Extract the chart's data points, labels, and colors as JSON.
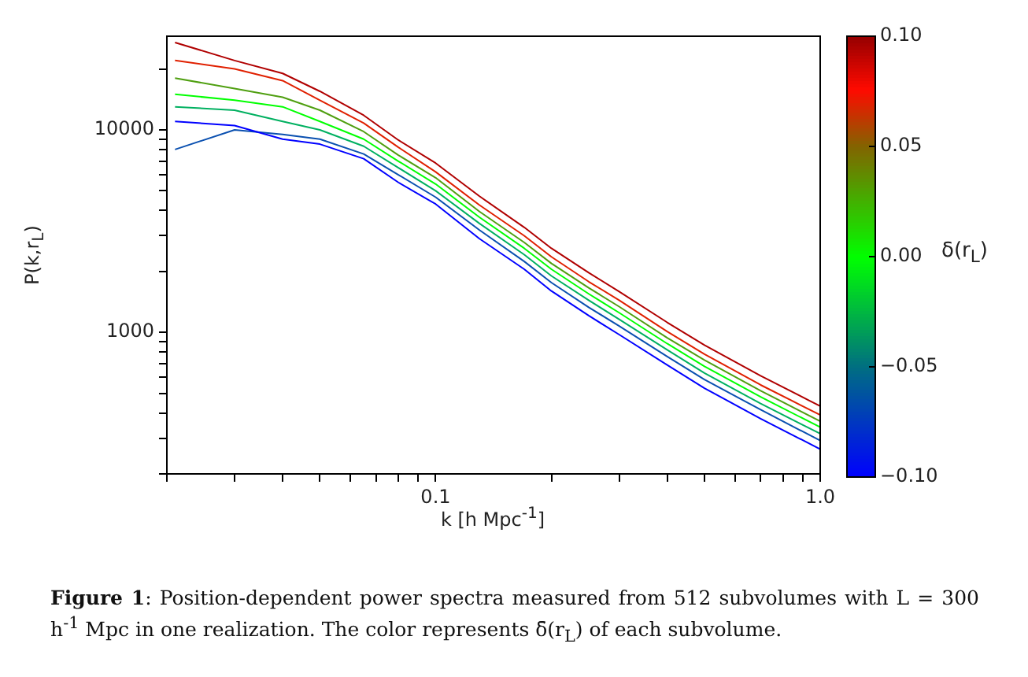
{
  "chart_data": {
    "type": "line",
    "xlabel": "k [h Mpc$^{-1}$]",
    "ylabel": "P(k,r$_{L}$)",
    "clabel": "δ(r$_{L}$)",
    "log": "xy",
    "grid": false,
    "legend": false,
    "marker": "none",
    "line_style": "solid",
    "xlim": [
      0.02,
      1.0
    ],
    "ylim": [
      200,
      29000
    ],
    "xticks": [
      {
        "value": 0.02,
        "label": null
      },
      {
        "value": 0.03,
        "label": null
      },
      {
        "value": 0.04,
        "label": null
      },
      {
        "value": 0.05,
        "label": null
      },
      {
        "value": 0.06,
        "label": null
      },
      {
        "value": 0.07,
        "label": null
      },
      {
        "value": 0.08,
        "label": null
      },
      {
        "value": 0.09,
        "label": null
      },
      0.1,
      {
        "value": 0.2,
        "label": null
      },
      {
        "value": 0.3,
        "label": null
      },
      {
        "value": 0.4,
        "label": null
      },
      {
        "value": 0.5,
        "label": null
      },
      {
        "value": 0.6,
        "label": null
      },
      {
        "value": 0.7,
        "label": null
      },
      {
        "value": 0.8,
        "label": null
      },
      {
        "value": 0.9,
        "label": null
      },
      {
        "value": 1.0,
        "label": "1.0"
      }
    ],
    "yticks": [
      {
        "value": 200,
        "label": null
      },
      {
        "value": 300,
        "label": null
      },
      {
        "value": 400,
        "label": null
      },
      {
        "value": 500,
        "label": null
      },
      {
        "value": 600,
        "label": null
      },
      {
        "value": 700,
        "label": null
      },
      {
        "value": 800,
        "label": null
      },
      {
        "value": 900,
        "label": null
      },
      1000,
      {
        "value": 2000,
        "label": null
      },
      {
        "value": 3000,
        "label": null
      },
      {
        "value": 4000,
        "label": null
      },
      {
        "value": 5000,
        "label": null
      },
      {
        "value": 6000,
        "label": null
      },
      {
        "value": 7000,
        "label": null
      },
      {
        "value": 8000,
        "label": null
      },
      {
        "value": 9000,
        "label": null
      },
      10000,
      {
        "value": 20000,
        "label": null
      }
    ],
    "clim": [
      -0.1,
      0.1
    ],
    "cticks": [
      {
        "value": -0.1,
        "label": "−0.10"
      },
      {
        "value": -0.05,
        "label": "−0.05"
      },
      {
        "value": 0,
        "label": "0.00"
      },
      {
        "value": 0.05,
        "label": "0.05"
      },
      {
        "value": 0.1,
        "label": "0.10"
      }
    ],
    "x": [
      0.021,
      0.03,
      0.04,
      0.05,
      0.065,
      0.08,
      0.1,
      0.13,
      0.17,
      0.2,
      0.25,
      0.3,
      0.4,
      0.5,
      0.7,
      1.0
    ],
    "series": [
      {
        "color": "#0000ff",
        "values": [
          11000,
          10500,
          9000,
          8500,
          7200,
          5500,
          4300,
          2900,
          2050,
          1600,
          1210,
          975,
          690,
          530,
          375,
          265
        ]
      },
      {
        "color": "#0a50b0",
        "values": [
          8000,
          10000,
          9500,
          9000,
          7600,
          6000,
          4650,
          3200,
          2240,
          1760,
          1330,
          1075,
          760,
          585,
          415,
          292
        ]
      },
      {
        "color": "#00b060",
        "values": [
          13000,
          12500,
          11000,
          10000,
          8300,
          6500,
          5000,
          3450,
          2420,
          1900,
          1440,
          1160,
          820,
          630,
          445,
          316
        ]
      },
      {
        "color": "#00ff00",
        "values": [
          15000,
          14000,
          13000,
          11000,
          9000,
          7000,
          5400,
          3700,
          2600,
          2050,
          1550,
          1250,
          880,
          680,
          480,
          340
        ]
      },
      {
        "color": "#4f9f10",
        "values": [
          18000,
          16000,
          14500,
          12500,
          9800,
          7500,
          5800,
          3950,
          2780,
          2190,
          1660,
          1340,
          940,
          730,
          515,
          364
        ]
      },
      {
        "color": "#e02000",
        "values": [
          22000,
          20000,
          17500,
          14000,
          10800,
          8200,
          6200,
          4250,
          3000,
          2360,
          1780,
          1440,
          1010,
          780,
          550,
          391
        ]
      },
      {
        "color": "#b00000",
        "values": [
          27000,
          22000,
          19000,
          15500,
          11800,
          8900,
          6850,
          4700,
          3300,
          2600,
          1970,
          1590,
          1120,
          865,
          610,
          432
        ]
      }
    ],
    "annotations": [
      "Figure 1: Position-dependent power spectra measured from 512 subvolumes with L = 300 h$^{-1}$ Mpc in one realization. The color represents δ̄(r$_{L}$) of each subvolume."
    ]
  }
}
